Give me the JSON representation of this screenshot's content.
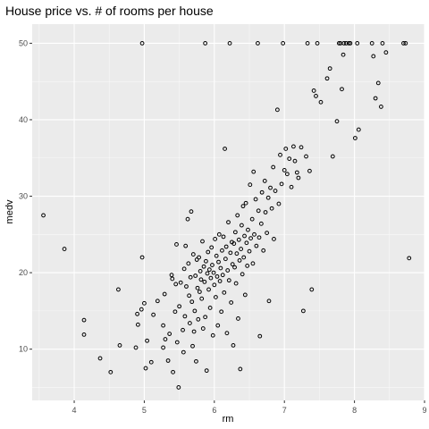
{
  "chart_data": {
    "type": "scatter",
    "title": "House price vs. # of rooms per house",
    "xlabel": "rm",
    "ylabel": "medv",
    "xlim": [
      3.4,
      9.0
    ],
    "ylim": [
      3.3,
      52.5
    ],
    "xticks": [
      4,
      5,
      6,
      7,
      8,
      9
    ],
    "yticks": [
      10,
      20,
      30,
      40,
      50
    ],
    "grid": true,
    "legend": "none",
    "colors": {
      "panel": "#ebebeb",
      "grid": "#ffffff",
      "point": "#000000",
      "tick_text": "#4d4d4d"
    },
    "series": [
      {
        "points": [
          [
            3.56,
            27.5
          ],
          [
            3.86,
            23.1
          ],
          [
            4.14,
            13.8
          ],
          [
            4.14,
            11.9
          ],
          [
            4.37,
            8.8
          ],
          [
            4.52,
            7.0
          ],
          [
            4.63,
            17.8
          ],
          [
            4.65,
            10.5
          ],
          [
            4.88,
            10.2
          ],
          [
            4.9,
            14.6
          ],
          [
            4.91,
            13.2
          ],
          [
            4.96,
            15.2
          ],
          [
            4.97,
            50.0
          ],
          [
            4.97,
            22.0
          ],
          [
            5.0,
            16.0
          ],
          [
            5.02,
            7.5
          ],
          [
            5.04,
            11.1
          ],
          [
            5.1,
            8.3
          ],
          [
            5.13,
            14.5
          ],
          [
            5.19,
            16.3
          ],
          [
            5.27,
            13.1
          ],
          [
            5.27,
            10.2
          ],
          [
            5.29,
            17.2
          ],
          [
            5.3,
            11.3
          ],
          [
            5.34,
            8.5
          ],
          [
            5.36,
            12.0
          ],
          [
            5.39,
            19.7
          ],
          [
            5.4,
            19.2
          ],
          [
            5.41,
            7.0
          ],
          [
            5.44,
            14.9
          ],
          [
            5.45,
            18.5
          ],
          [
            5.46,
            23.7
          ],
          [
            5.47,
            10.9
          ],
          [
            5.49,
            5.0
          ],
          [
            5.5,
            15.6
          ],
          [
            5.52,
            18.7
          ],
          [
            5.55,
            12.5
          ],
          [
            5.56,
            9.6
          ],
          [
            5.57,
            20.5
          ],
          [
            5.58,
            14.3
          ],
          [
            5.59,
            23.5
          ],
          [
            5.6,
            18.2
          ],
          [
            5.62,
            27.0
          ],
          [
            5.63,
            21.2
          ],
          [
            5.64,
            17.0
          ],
          [
            5.65,
            13.4
          ],
          [
            5.66,
            19.4
          ],
          [
            5.67,
            28.0
          ],
          [
            5.68,
            16.2
          ],
          [
            5.69,
            10.4
          ],
          [
            5.7,
            22.4
          ],
          [
            5.71,
            12.3
          ],
          [
            5.72,
            15.0
          ],
          [
            5.73,
            19.6
          ],
          [
            5.74,
            8.4
          ],
          [
            5.75,
            21.7
          ],
          [
            5.76,
            18.0
          ],
          [
            5.77,
            13.9
          ],
          [
            5.78,
            22.0
          ],
          [
            5.79,
            17.5
          ],
          [
            5.8,
            20.2
          ],
          [
            5.81,
            19.1
          ],
          [
            5.82,
            16.6
          ],
          [
            5.83,
            24.1
          ],
          [
            5.84,
            12.7
          ],
          [
            5.85,
            20.8
          ],
          [
            5.86,
            18.8
          ],
          [
            5.87,
            50.0
          ],
          [
            5.87,
            14.2
          ],
          [
            5.88,
            21.5
          ],
          [
            5.89,
            7.2
          ],
          [
            5.9,
            19.9
          ],
          [
            5.91,
            22.7
          ],
          [
            5.92,
            17.8
          ],
          [
            5.93,
            20.4
          ],
          [
            5.94,
            15.4
          ],
          [
            5.95,
            19.3
          ],
          [
            5.96,
            23.3
          ],
          [
            5.97,
            21.0
          ],
          [
            5.98,
            11.8
          ],
          [
            5.99,
            20.0
          ],
          [
            6.0,
            18.4
          ],
          [
            6.01,
            24.4
          ],
          [
            6.02,
            16.8
          ],
          [
            6.03,
            22.2
          ],
          [
            6.04,
            19.5
          ],
          [
            6.05,
            13.1
          ],
          [
            6.06,
            21.4
          ],
          [
            6.07,
            25.0
          ],
          [
            6.08,
            18.9
          ],
          [
            6.09,
            20.6
          ],
          [
            6.1,
            14.9
          ],
          [
            6.11,
            22.9
          ],
          [
            6.12,
            19.7
          ],
          [
            6.13,
            24.7
          ],
          [
            6.14,
            17.4
          ],
          [
            6.15,
            36.2
          ],
          [
            6.16,
            21.8
          ],
          [
            6.17,
            23.4
          ],
          [
            6.18,
            12.1
          ],
          [
            6.19,
            20.3
          ],
          [
            6.2,
            26.6
          ],
          [
            6.21,
            19.0
          ],
          [
            6.22,
            50.0
          ],
          [
            6.23,
            22.6
          ],
          [
            6.24,
            16.1
          ],
          [
            6.25,
            24.0
          ],
          [
            6.26,
            21.1
          ],
          [
            6.27,
            10.5
          ],
          [
            6.28,
            23.8
          ],
          [
            6.29,
            20.7
          ],
          [
            6.3,
            25.3
          ],
          [
            6.31,
            18.6
          ],
          [
            6.32,
            22.5
          ],
          [
            6.33,
            27.5
          ],
          [
            6.34,
            14.0
          ],
          [
            6.35,
            24.3
          ],
          [
            6.36,
            21.6
          ],
          [
            6.37,
            7.4
          ],
          [
            6.38,
            23.1
          ],
          [
            6.39,
            26.2
          ],
          [
            6.4,
            19.8
          ],
          [
            6.41,
            28.7
          ],
          [
            6.42,
            22.0
          ],
          [
            6.43,
            24.8
          ],
          [
            6.44,
            17.1
          ],
          [
            6.45,
            29.1
          ],
          [
            6.46,
            23.9
          ],
          [
            6.47,
            20.9
          ],
          [
            6.48,
            25.6
          ],
          [
            6.5,
            22.8
          ],
          [
            6.51,
            31.5
          ],
          [
            6.52,
            24.5
          ],
          [
            6.54,
            27.0
          ],
          [
            6.55,
            21.2
          ],
          [
            6.56,
            33.2
          ],
          [
            6.57,
            25.0
          ],
          [
            6.59,
            29.6
          ],
          [
            6.6,
            23.5
          ],
          [
            6.62,
            50.0
          ],
          [
            6.63,
            28.1
          ],
          [
            6.64,
            24.6
          ],
          [
            6.65,
            11.7
          ],
          [
            6.67,
            26.4
          ],
          [
            6.68,
            30.5
          ],
          [
            6.7,
            22.9
          ],
          [
            6.72,
            32.0
          ],
          [
            6.73,
            27.9
          ],
          [
            6.75,
            25.2
          ],
          [
            6.77,
            29.8
          ],
          [
            6.78,
            16.3
          ],
          [
            6.8,
            31.1
          ],
          [
            6.82,
            28.4
          ],
          [
            6.84,
            33.8
          ],
          [
            6.85,
            24.4
          ],
          [
            6.87,
            30.7
          ],
          [
            6.9,
            41.3
          ],
          [
            6.92,
            29.0
          ],
          [
            6.94,
            35.4
          ],
          [
            6.96,
            31.6
          ],
          [
            6.98,
            50.0
          ],
          [
            7.0,
            33.4
          ],
          [
            7.02,
            36.2
          ],
          [
            7.04,
            32.9
          ],
          [
            7.07,
            34.9
          ],
          [
            7.1,
            31.2
          ],
          [
            7.13,
            36.5
          ],
          [
            7.15,
            34.6
          ],
          [
            7.18,
            33.1
          ],
          [
            7.2,
            32.4
          ],
          [
            7.24,
            36.4
          ],
          [
            7.27,
            15.0
          ],
          [
            7.31,
            35.2
          ],
          [
            7.33,
            50.0
          ],
          [
            7.36,
            33.3
          ],
          [
            7.39,
            17.8
          ],
          [
            7.42,
            43.8
          ],
          [
            7.45,
            43.1
          ],
          [
            7.47,
            50.0
          ],
          [
            7.52,
            42.3
          ],
          [
            7.61,
            45.4
          ],
          [
            7.65,
            46.7
          ],
          [
            7.69,
            35.2
          ],
          [
            7.75,
            39.8
          ],
          [
            7.78,
            50.0
          ],
          [
            7.8,
            50.0
          ],
          [
            7.82,
            44.0
          ],
          [
            7.84,
            48.5
          ],
          [
            7.85,
            50.0
          ],
          [
            7.88,
            50.0
          ],
          [
            7.92,
            50.0
          ],
          [
            7.94,
            50.0
          ],
          [
            8.01,
            37.6
          ],
          [
            8.04,
            50.0
          ],
          [
            8.06,
            38.7
          ],
          [
            8.25,
            50.0
          ],
          [
            8.27,
            48.3
          ],
          [
            8.3,
            42.8
          ],
          [
            8.34,
            44.8
          ],
          [
            8.38,
            41.7
          ],
          [
            8.4,
            50.0
          ],
          [
            8.45,
            48.8
          ],
          [
            8.7,
            50.0
          ],
          [
            8.73,
            50.0
          ],
          [
            8.78,
            21.9
          ]
        ]
      }
    ]
  }
}
